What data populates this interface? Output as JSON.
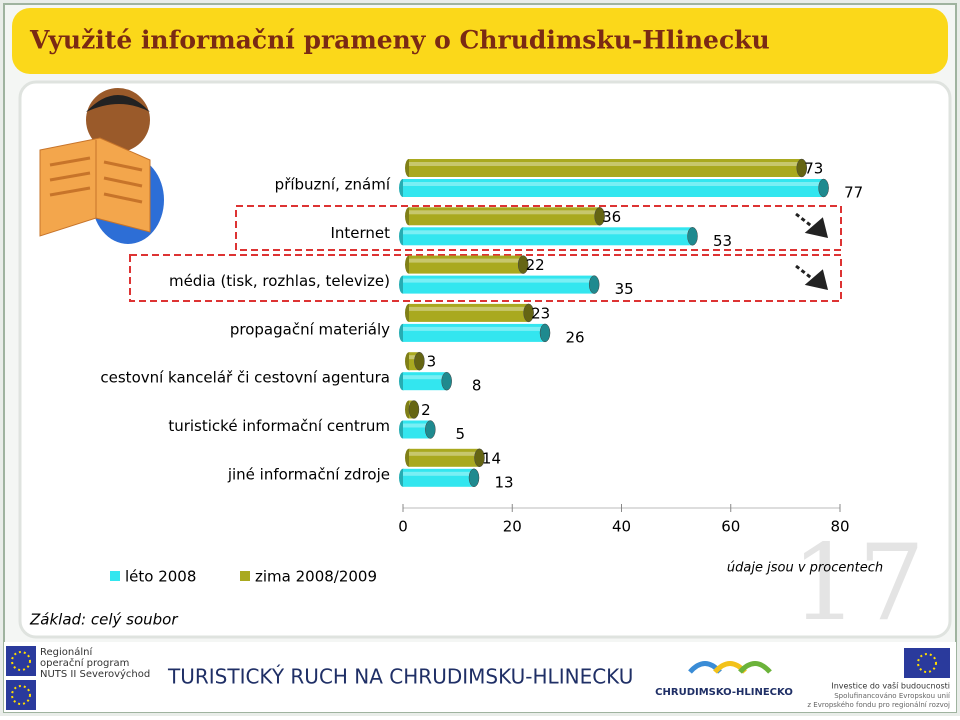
{
  "slide": {
    "title": "Využité informační prameny o Chrudimsku-Hlinecku",
    "number": 17,
    "base": "Základ: celý soubor",
    "note": "údaje jsou v procentech",
    "footer": {
      "program": [
        "Regionální",
        "operační program",
        "NUTS II Severovýchod"
      ],
      "project": "TURISTICKÝ RUCH NA CHRUDIMSKU-HLINECKU",
      "region_logo": "CHRUDIMSKO-HLINECKO",
      "eu": [
        "Investice do vaší budoucnosti",
        "Spolufinancováno Evropskou unií",
        "z Evropského fondu pro regionální rozvoj"
      ]
    }
  },
  "chart_data": {
    "type": "bar",
    "orientation": "horizontal",
    "categories": [
      "příbuzní, známí",
      "Internet",
      "média (tisk, rozhlas, televize)",
      "propagační materiály",
      "cestovní kancelář či cestovní agentura",
      "turistické informační centrum",
      "jiné informační zdroje"
    ],
    "series": [
      {
        "name": "léto 2008",
        "color": "#33e6ef",
        "values": [
          77,
          53,
          35,
          26,
          8,
          5,
          13
        ]
      },
      {
        "name": "zima 2008/2009",
        "color": "#a9a91f",
        "values": [
          73,
          36,
          22,
          23,
          3,
          2,
          14
        ]
      }
    ],
    "xlim": [
      0,
      80
    ],
    "xticks": [
      0,
      20,
      40,
      60,
      80
    ],
    "legend": "bottom-left"
  }
}
